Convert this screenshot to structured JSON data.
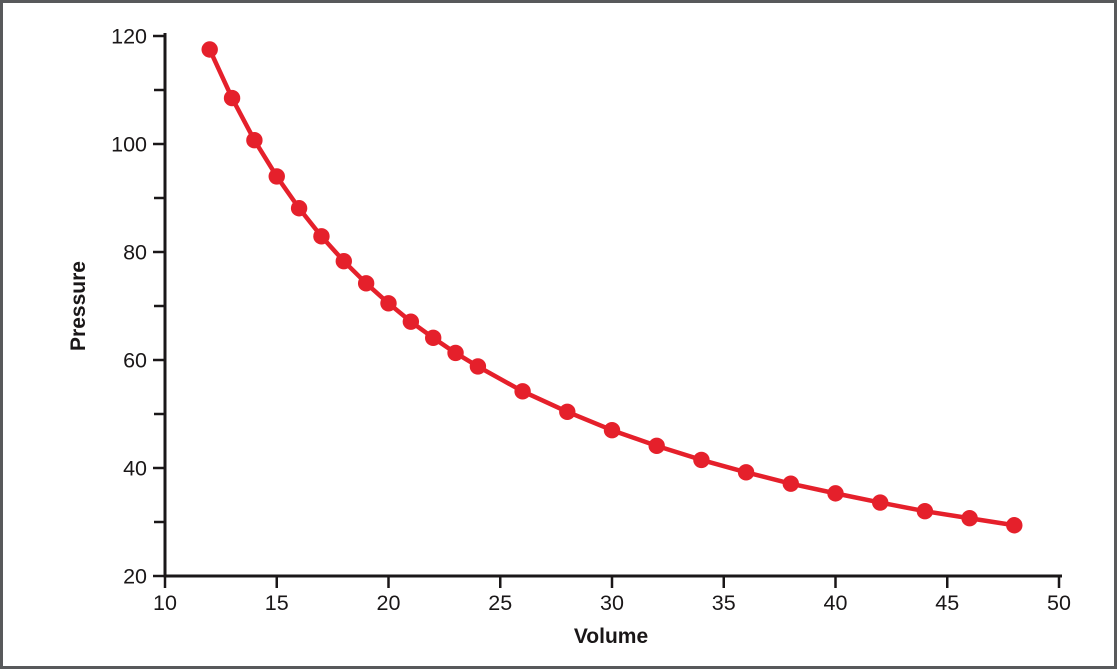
{
  "figure": {
    "border_color": "#58595b",
    "background_color": "#ffffff",
    "axis_color": "#1a1718"
  },
  "chart_data": {
    "type": "line",
    "title": "",
    "xlabel": "Volume",
    "ylabel": "Pressure",
    "xlim": [
      10,
      50
    ],
    "ylim": [
      20,
      120
    ],
    "x_major_ticks": [
      10,
      15,
      20,
      25,
      30,
      35,
      40,
      45,
      50
    ],
    "y_major_ticks": [
      20,
      40,
      60,
      80,
      100,
      120
    ],
    "y_minor_ticks": [
      30,
      50,
      70,
      90,
      110
    ],
    "grid": false,
    "legend_position": "none",
    "series": [
      {
        "name": "pressure-vs-volume",
        "color": "#e5202b",
        "marker": "circle",
        "x": [
          12,
          13,
          14,
          15,
          16,
          17,
          18,
          19,
          20,
          21,
          22,
          23,
          24,
          26,
          28,
          30,
          32,
          34,
          36,
          38,
          40,
          42,
          44,
          46,
          48
        ],
        "y": [
          117.5,
          108.5,
          100.7,
          94.0,
          88.1,
          82.9,
          78.3,
          74.2,
          70.5,
          67.1,
          64.1,
          61.3,
          58.8,
          54.2,
          50.4,
          47.0,
          44.1,
          41.5,
          39.2,
          37.1,
          35.3,
          33.6,
          32.0,
          30.7,
          29.4
        ]
      }
    ]
  }
}
